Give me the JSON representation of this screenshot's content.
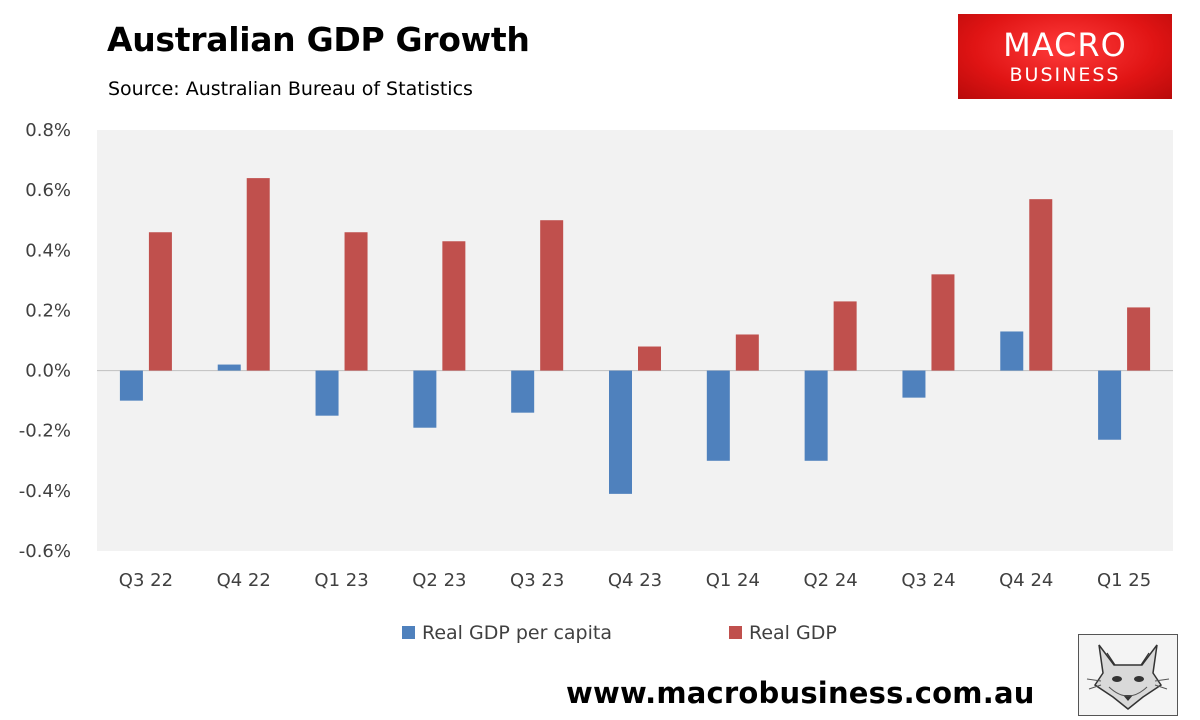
{
  "header": {
    "title": "Australian GDP Growth",
    "subtitle": "Source: Australian Bureau of Statistics"
  },
  "logo": {
    "line1": "MACRO",
    "line2": "BUSINESS",
    "color": "#e01414"
  },
  "footer": {
    "url": "www.macrobusiness.com.au",
    "mascot_icon": "fox-icon"
  },
  "chart_data": {
    "type": "bar",
    "title": "Australian GDP Growth",
    "subtitle": "Source: Australian Bureau of Statistics",
    "xlabel": "",
    "ylabel": "",
    "categories": [
      "Q3 22",
      "Q4 22",
      "Q1 23",
      "Q2 23",
      "Q3 23",
      "Q4 23",
      "Q1 24",
      "Q2 24",
      "Q3 24",
      "Q4 24",
      "Q1 25"
    ],
    "series": [
      {
        "name": "Real GDP per capita",
        "color": "#4f81bd",
        "values": [
          -0.1,
          0.02,
          -0.15,
          -0.19,
          -0.14,
          -0.41,
          -0.3,
          -0.3,
          -0.09,
          0.13,
          -0.23
        ]
      },
      {
        "name": "Real GDP",
        "color": "#c0504d",
        "values": [
          0.46,
          0.64,
          0.46,
          0.43,
          0.5,
          0.08,
          0.12,
          0.23,
          0.32,
          0.57,
          0.21
        ]
      }
    ],
    "ylim": [
      -0.6,
      0.8
    ],
    "yticks": [
      -0.6,
      -0.4,
      -0.2,
      0.0,
      0.2,
      0.4,
      0.6,
      0.8
    ],
    "ytick_labels": [
      "-0.6%",
      "-0.4%",
      "-0.2%",
      "0.0%",
      "0.2%",
      "0.4%",
      "0.6%",
      "0.8%"
    ],
    "legend_position": "bottom",
    "plot_background": "#f2f2f2",
    "grid": false
  }
}
